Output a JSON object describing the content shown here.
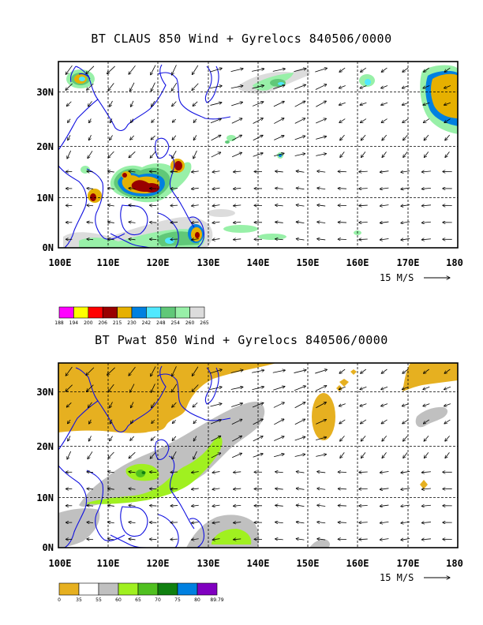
{
  "panels": [
    {
      "id": "claus",
      "title": "BT CLAUS 850 Wind + Gyrelocs 840506/0000",
      "lat_labels": [
        "30N",
        "20N",
        "10N",
        "0N"
      ],
      "lon_labels": [
        "100E",
        "110E",
        "120E",
        "130E",
        "140E",
        "150E",
        "160E",
        "170E",
        "180"
      ],
      "vector_scale_label": "15 M/S",
      "colorbar": {
        "labels": [
          "188",
          "194",
          "200",
          "206",
          "215",
          "230",
          "242",
          "248",
          "254",
          "260",
          "265"
        ],
        "colors": [
          "#ff00ff",
          "#ffff00",
          "#ff0000",
          "#990000",
          "#e6b000",
          "#0080e0",
          "#50e8ff",
          "#60c878",
          "#98f0a8",
          "#dcdcdc"
        ]
      }
    },
    {
      "id": "pwat",
      "title": "BT Pwat 850 Wind + Gyrelocs 840506/0000",
      "lat_labels": [
        "30N",
        "20N",
        "10N",
        "0N"
      ],
      "lon_labels": [
        "100E",
        "110E",
        "120E",
        "130E",
        "140E",
        "150E",
        "160E",
        "170E",
        "180"
      ],
      "vector_scale_label": "15 M/S",
      "colorbar": {
        "labels": [
          "0",
          "35",
          "55",
          "60",
          "65",
          "70",
          "75",
          "80",
          "89.79"
        ],
        "colors": [
          "#e6b020",
          "#ffffff",
          "#c0c0c0",
          "#a0f020",
          "#50c020",
          "#108010",
          "#0080e0",
          "#8000c0"
        ]
      }
    }
  ]
}
